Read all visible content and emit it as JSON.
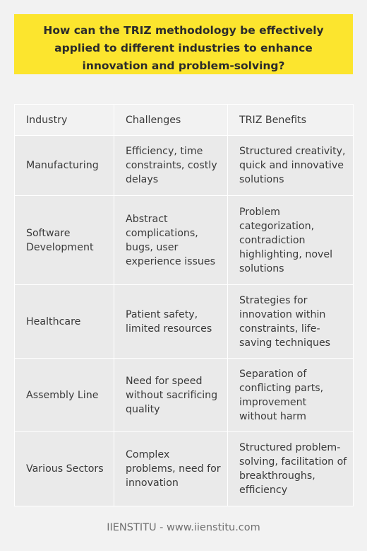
{
  "question": "How can the TRIZ methodology be effectively applied to different industries to enhance innovation and problem-solving?",
  "table": {
    "headers": [
      "Industry",
      "Challenges",
      "TRIZ Benefits"
    ],
    "rows": [
      {
        "industry": "Manufacturing",
        "challenges": "Efficiency, time constraints, costly delays",
        "benefits": "Structured creativity, quick and innovative solutions"
      },
      {
        "industry": "Software Development",
        "challenges": "Abstract complications, bugs, user experience issues",
        "benefits": "Problem categorization, contradiction highlighting, novel solutions"
      },
      {
        "industry": "Healthcare",
        "challenges": "Patient safety, limited resources",
        "benefits": "Strategies for innovation within constraints, life-saving techniques"
      },
      {
        "industry": "Assembly Line",
        "challenges": "Need for speed without sacrificing quality",
        "benefits": "Separation of conflicting parts, improvement without harm"
      },
      {
        "industry": "Various Sectors",
        "challenges": "Complex problems, need for innovation",
        "benefits": "Structured problem-solving, facilitation of breakthroughs, efficiency"
      }
    ]
  },
  "footer": "IIENSTITU - www.iienstitu.com",
  "colors": {
    "question_background": "#fce52e",
    "page_background": "#f2f2f2",
    "row_background": "#eaeaea"
  }
}
